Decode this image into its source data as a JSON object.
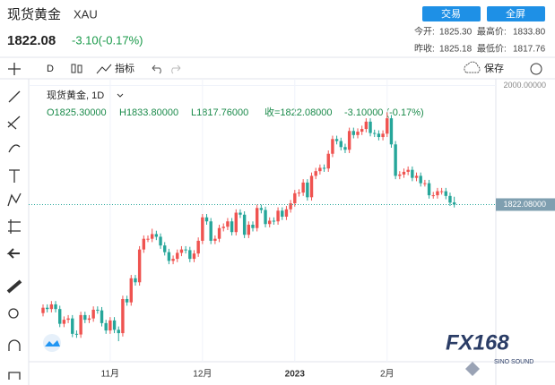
{
  "header": {
    "name": "现货黄金",
    "symbol": "XAU",
    "price": "1822.08",
    "change": "-3.10(-0.17%)",
    "trade_button": "交易",
    "fullscreen_button": "全屏",
    "stats": [
      {
        "label": "今开:",
        "value": "1825.30"
      },
      {
        "label": "最高价:",
        "value": "1833.80"
      },
      {
        "label": "昨收:",
        "value": "1825.18"
      },
      {
        "label": "最低价:",
        "value": "1817.76"
      }
    ]
  },
  "toolbar": {
    "interval": "D",
    "indicators": "指标",
    "save": "保存"
  },
  "legend": {
    "title": "现货黄金, 1D",
    "open": "O1825.30000",
    "high": "H1833.80000",
    "low": "L1817.76000",
    "close": "收=1822.08000",
    "change": "-3.10000 (-0.17%)"
  },
  "watermark": {
    "logo": "FX168",
    "sub": "SINO SOUND"
  },
  "chart_data": {
    "type": "candlestick",
    "up_color": "#ef5350",
    "down_color": "#26a69a",
    "categories": [
      null,
      null,
      null,
      null,
      null,
      null,
      null,
      null,
      null,
      null,
      null,
      null,
      null,
      null,
      null,
      null,
      "11月",
      null,
      null,
      null,
      null,
      null,
      null,
      null,
      null,
      null,
      null,
      null,
      null,
      null,
      null,
      null,
      null,
      null,
      null,
      null,
      null,
      null,
      "12月",
      null,
      null,
      null,
      null,
      null,
      null,
      null,
      null,
      null,
      null,
      null,
      null,
      null,
      null,
      null,
      null,
      null,
      null,
      null,
      null,
      null,
      "2023",
      null,
      null,
      null,
      null,
      null,
      null,
      null,
      null,
      null,
      null,
      null,
      null,
      null,
      null,
      null,
      null,
      null,
      null,
      null,
      null,
      null,
      "2月",
      null,
      null,
      null,
      null,
      null,
      null,
      null,
      null,
      null,
      null,
      null,
      null,
      null,
      null,
      null,
      null
    ],
    "open": [
      1660,
      1668,
      1666,
      1673,
      1666,
      1644,
      1650,
      1652,
      1629,
      1628,
      1657,
      1650,
      1652,
      1665,
      1664,
      1645,
      1634,
      1649,
      1635,
      1630,
      1681,
      1676,
      1712,
      1706,
      1755,
      1771,
      1771,
      1778,
      1774,
      1761,
      1751,
      1738,
      1741,
      1750,
      1755,
      1754,
      1741,
      1749,
      1768,
      1803,
      1797,
      1768,
      1771,
      1787,
      1789,
      1797,
      1781,
      1810,
      1807,
      1777,
      1792,
      1787,
      1817,
      1814,
      1793,
      1798,
      1797,
      1813,
      1804,
      1815,
      1824,
      1839,
      1840,
      1855,
      1833,
      1865,
      1872,
      1877,
      1876,
      1898,
      1920,
      1917,
      1908,
      1904,
      1932,
      1926,
      1931,
      1935,
      1946,
      1929,
      1928,
      1923,
      1928,
      1951,
      1912,
      1865,
      1867,
      1871,
      1874,
      1862,
      1865,
      1854,
      1854,
      1836,
      1836,
      1842,
      1842,
      1835,
      1825.3
    ],
    "high": [
      1673,
      1673,
      1678,
      1678,
      1671,
      1655,
      1657,
      1657,
      1634,
      1662,
      1662,
      1657,
      1670,
      1670,
      1669,
      1650,
      1654,
      1654,
      1640,
      1686,
      1686,
      1717,
      1717,
      1760,
      1776,
      1776,
      1786,
      1783,
      1779,
      1766,
      1756,
      1746,
      1755,
      1760,
      1760,
      1759,
      1754,
      1773,
      1808,
      1808,
      1802,
      1776,
      1792,
      1794,
      1802,
      1802,
      1815,
      1815,
      1812,
      1797,
      1797,
      1822,
      1822,
      1819,
      1803,
      1803,
      1818,
      1818,
      1820,
      1829,
      1844,
      1845,
      1860,
      1860,
      1870,
      1877,
      1882,
      1882,
      1903,
      1925,
      1925,
      1922,
      1913,
      1937,
      1937,
      1936,
      1940,
      1951,
      1951,
      1934,
      1933,
      1933,
      1960,
      1956,
      1917,
      1872,
      1876,
      1879,
      1879,
      1870,
      1870,
      1859,
      1859,
      1841,
      1847,
      1847,
      1847,
      1840,
      1833.8
    ],
    "low": [
      1655,
      1661,
      1661,
      1661,
      1639,
      1639,
      1645,
      1624,
      1623,
      1623,
      1645,
      1645,
      1647,
      1659,
      1640,
      1629,
      1629,
      1630,
      1618,
      1625,
      1671,
      1671,
      1701,
      1701,
      1750,
      1766,
      1766,
      1769,
      1756,
      1746,
      1733,
      1733,
      1736,
      1745,
      1749,
      1736,
      1736,
      1744,
      1763,
      1792,
      1763,
      1763,
      1766,
      1782,
      1784,
      1776,
      1776,
      1802,
      1772,
      1772,
      1782,
      1782,
      1809,
      1788,
      1788,
      1792,
      1792,
      1799,
      1799,
      1810,
      1819,
      1834,
      1835,
      1828,
      1828,
      1860,
      1867,
      1871,
      1871,
      1893,
      1912,
      1903,
      1899,
      1899,
      1921,
      1921,
      1926,
      1930,
      1924,
      1923,
      1918,
      1918,
      1923,
      1907,
      1860,
      1860,
      1862,
      1866,
      1857,
      1857,
      1849,
      1849,
      1831,
      1831,
      1831,
      1837,
      1830,
      1820,
      1817.76
    ],
    "close": [
      1668,
      1666,
      1673,
      1666,
      1644,
      1650,
      1652,
      1629,
      1628,
      1657,
      1650,
      1652,
      1665,
      1664,
      1645,
      1634,
      1649,
      1635,
      1630,
      1681,
      1676,
      1712,
      1706,
      1755,
      1771,
      1771,
      1778,
      1774,
      1761,
      1751,
      1738,
      1741,
      1750,
      1755,
      1754,
      1741,
      1749,
      1768,
      1803,
      1797,
      1768,
      1771,
      1787,
      1789,
      1797,
      1781,
      1810,
      1807,
      1777,
      1792,
      1787,
      1817,
      1814,
      1793,
      1798,
      1797,
      1813,
      1804,
      1815,
      1824,
      1839,
      1840,
      1855,
      1833,
      1865,
      1872,
      1877,
      1876,
      1898,
      1920,
      1917,
      1908,
      1904,
      1932,
      1926,
      1931,
      1935,
      1946,
      1929,
      1928,
      1923,
      1928,
      1951,
      1912,
      1865,
      1867,
      1871,
      1874,
      1862,
      1865,
      1854,
      1854,
      1836,
      1836,
      1842,
      1842,
      1835,
      1825,
      1822.08
    ],
    "ylim": [
      1590,
      2010
    ],
    "yticks": [
      {
        "value": 2000,
        "label": "2000.00000"
      }
    ],
    "last_price": {
      "value": 1822.08,
      "label": "1822.08000"
    }
  }
}
